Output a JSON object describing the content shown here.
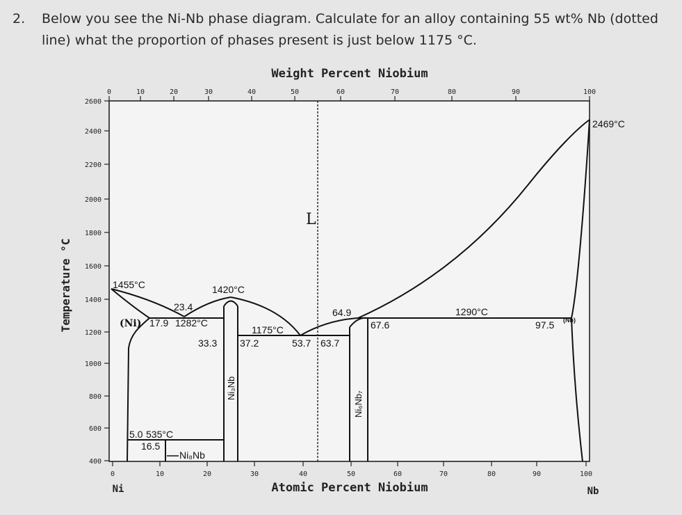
{
  "question": {
    "number": "2.",
    "line1": "Below you see the Ni-Nb phase diagram. Calculate for an alloy containing 55 wt% Nb (dotted",
    "line2": "line) what the proportion of phases present is just below 1175 °C."
  },
  "diagram": {
    "top_axis_title": "Weight Percent Niobium",
    "bottom_axis_title": "Atomic Percent Niobium",
    "y_axis_title": "Temperature °C",
    "left_element": "Ni",
    "right_element": "Nb",
    "top_ticks": [
      "0",
      "10",
      "20",
      "30",
      "40",
      "50",
      "60",
      "70",
      "80",
      "90",
      "100"
    ],
    "bottom_ticks": [
      "0",
      "10",
      "20",
      "30",
      "40",
      "50",
      "60",
      "70",
      "80",
      "90",
      "100"
    ],
    "y_ticks": [
      "2600",
      "2400",
      "2200",
      "2000",
      "1800",
      "1600",
      "1400",
      "1200",
      "1000",
      "800",
      "600",
      "400"
    ],
    "labels": {
      "liquid": "L",
      "ni_melt": "1455°C",
      "nb_melt": "2469°C",
      "congruent_ni3nb": "1420°C",
      "eutectic1_temp": "1282°C",
      "eutectic1_ni": "17.9",
      "eutectic1_e": "23.4",
      "eutectic1_ni3nb": "33.3",
      "eutectic2_temp": "1175°C",
      "eutectic2_ni3nb": "37.2",
      "eutectic2_e": "53.7",
      "eutectic2_ni6nb7": "63.7",
      "peritectic_temp": "1290°C",
      "peritectic_liq": "64.9",
      "peritectic_ni6nb7": "67.6",
      "peritectic_nb": "97.5",
      "ni_phase": "(Ni)",
      "nb_phase": "(Nb)",
      "ni3nb_phase": "Ni₃Nb",
      "ni6nb7_phase": "Ni₆Nb₇",
      "ni8nb_phase": "Ni₈Nb",
      "ni8nb_temp": "535°C",
      "ni8nb_left": "5.0",
      "ni8nb_right": "16.5"
    }
  }
}
